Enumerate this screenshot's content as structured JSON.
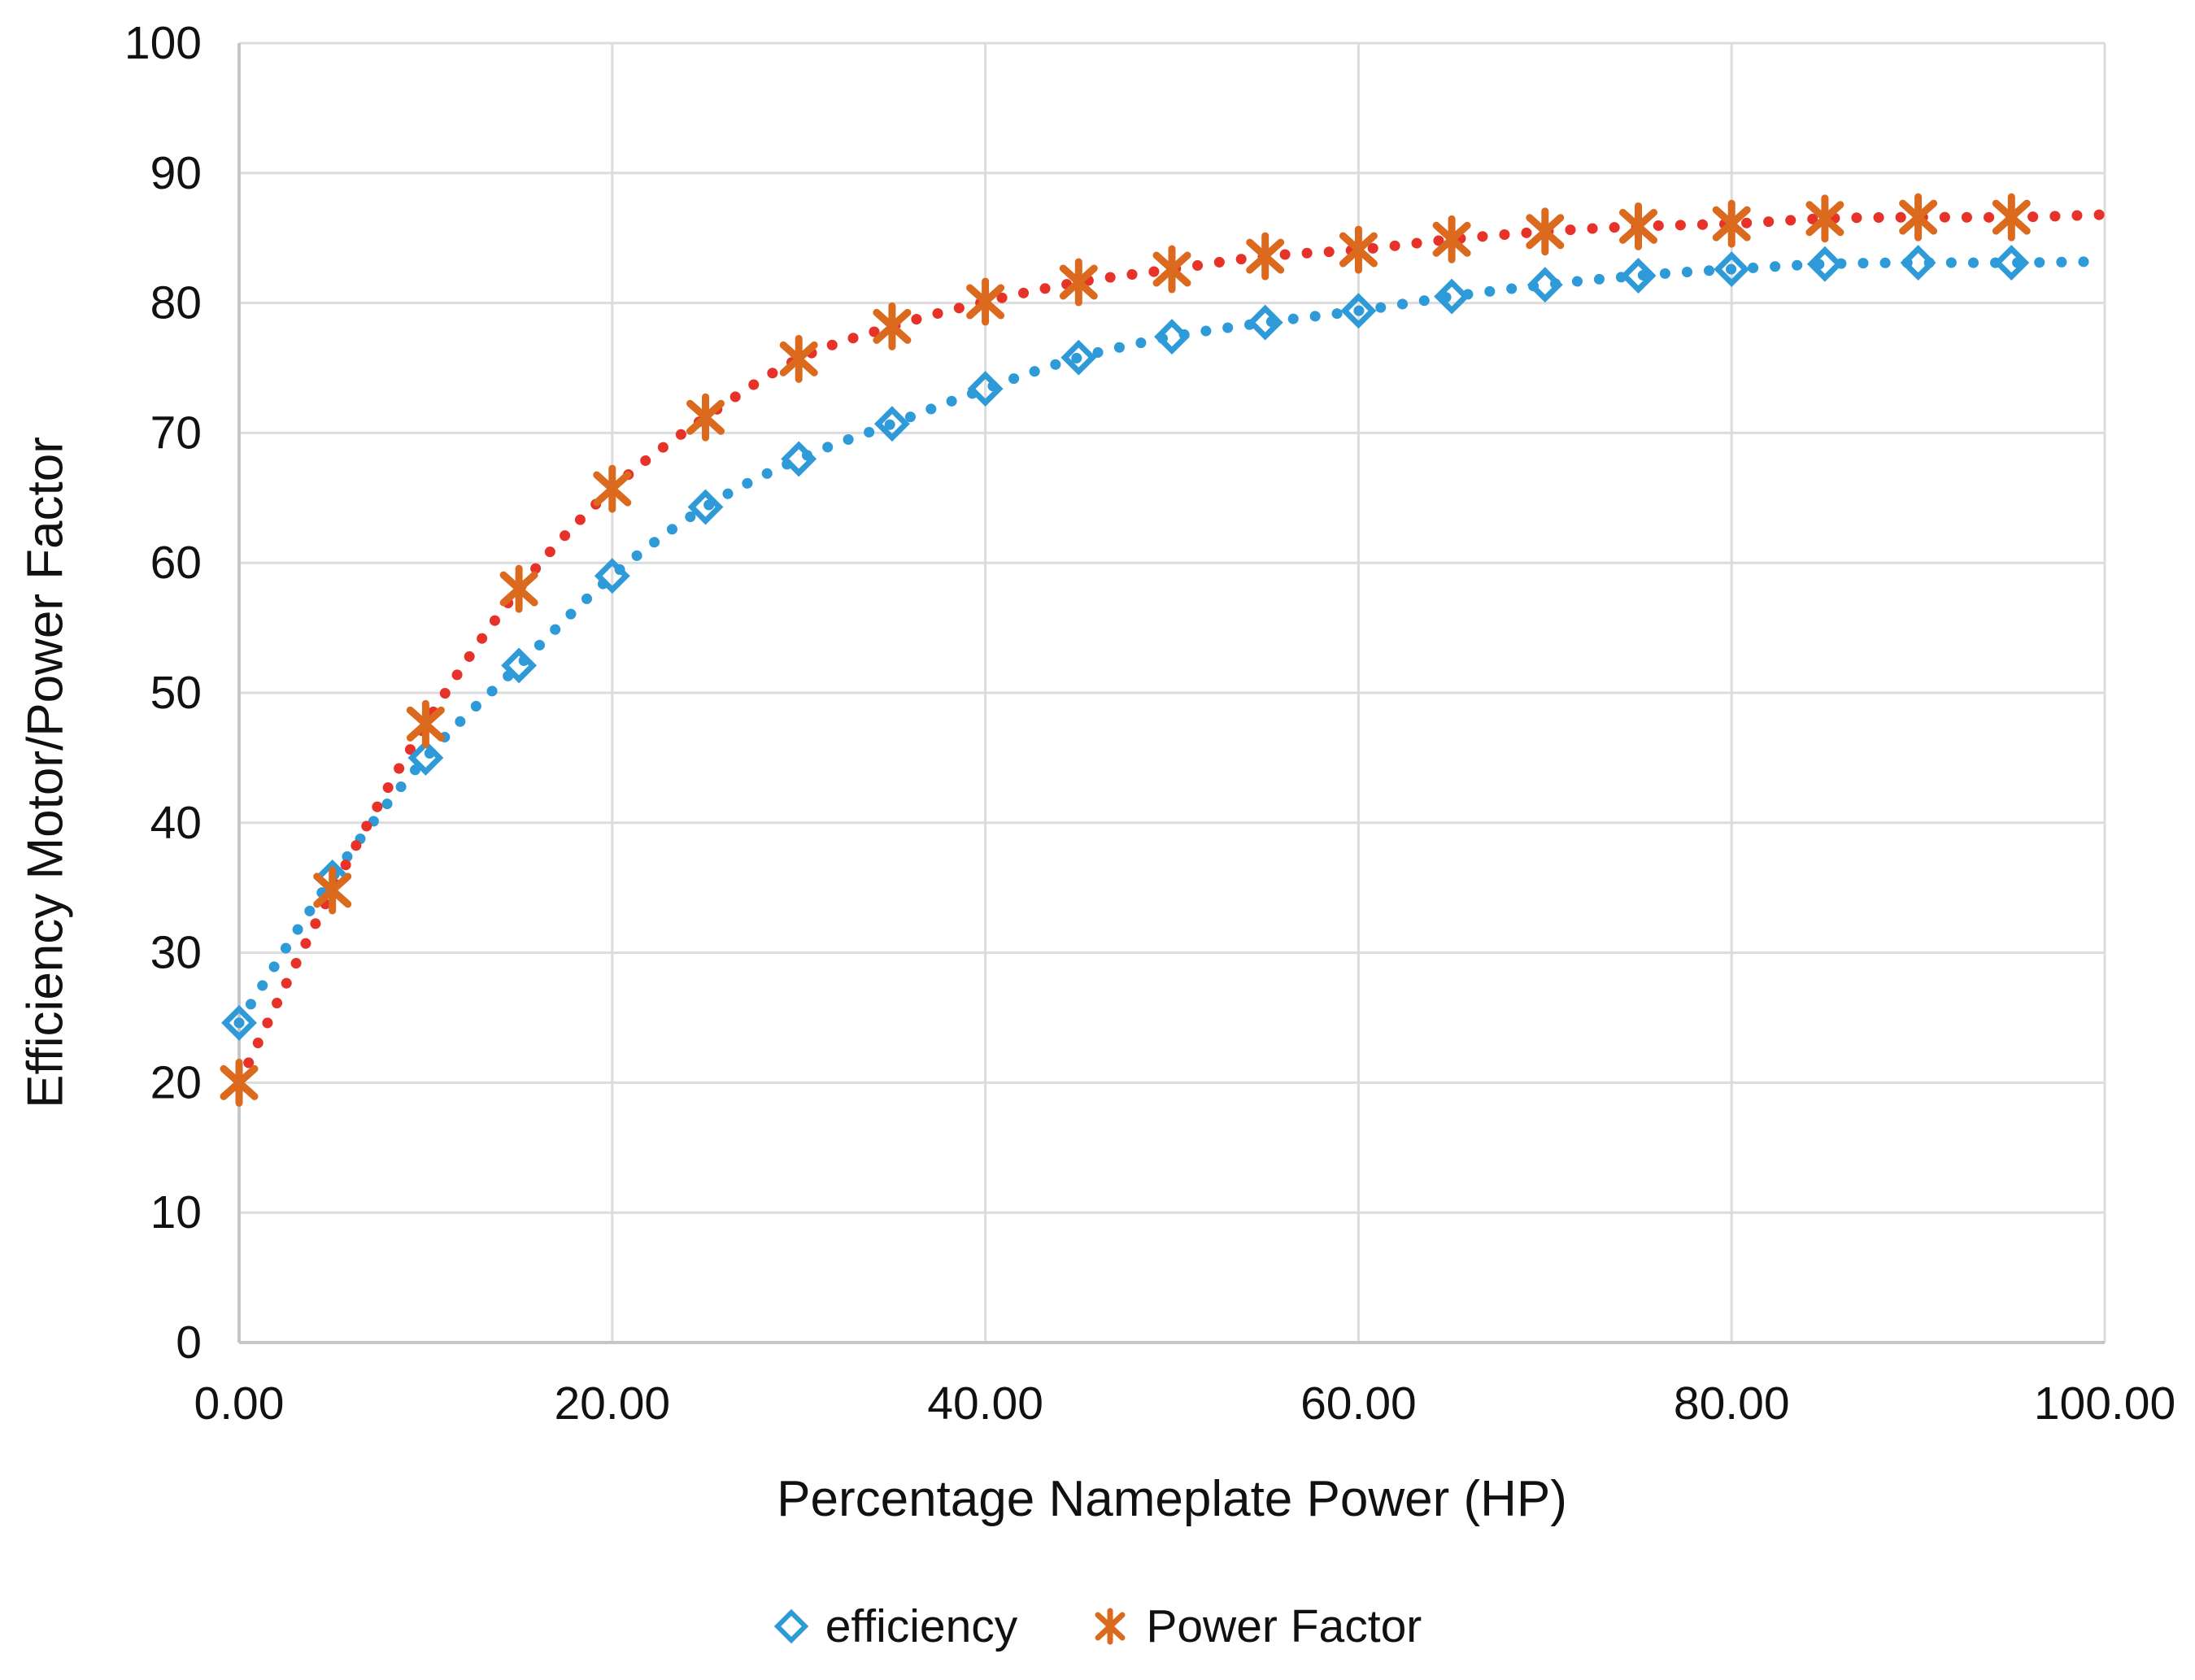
{
  "chart_data": {
    "type": "scatter",
    "title": "",
    "xlabel": "Percentage Nameplate Power (HP)",
    "ylabel": "Efficiency Motor/Power Factor",
    "xlim": [
      0,
      100
    ],
    "ylim": [
      0,
      100
    ],
    "x_major_unit": 20,
    "y_major_unit": 10,
    "grid": true,
    "legend_position": "bottom",
    "xtick_labels": [
      "0.00",
      "20.00",
      "40.00",
      "60.00",
      "80.00",
      "100.00"
    ],
    "ytick_labels": [
      "0",
      "10",
      "20",
      "30",
      "40",
      "50",
      "60",
      "70",
      "80",
      "90",
      "100"
    ],
    "x": [
      0,
      5,
      10,
      15,
      20,
      25,
      30,
      35,
      40,
      45,
      50,
      55,
      60,
      65,
      70,
      75,
      80,
      85,
      90,
      95
    ],
    "series": [
      {
        "name": "efficiency",
        "marker": "open-diamond",
        "marker_color": "#2E9BD8",
        "line_color": "#2E9BD8",
        "line_style": "dotted",
        "values": [
          24.6,
          35.8,
          45.0,
          52.1,
          59.0,
          64.3,
          68.0,
          70.7,
          73.4,
          75.8,
          77.4,
          78.5,
          79.4,
          80.5,
          81.4,
          82.1,
          82.6,
          83.0,
          83.1,
          83.1
        ],
        "trend_end_x": 100,
        "trend_end_value": 83.2
      },
      {
        "name": "Power Factor",
        "marker": "asterisk",
        "marker_color": "#DB6A1E",
        "line_color": "#E63228",
        "line_style": "dotted",
        "values": [
          20.0,
          34.8,
          47.6,
          58.0,
          65.7,
          71.2,
          75.7,
          78.2,
          80.1,
          81.6,
          82.6,
          83.6,
          84.1,
          84.9,
          85.5,
          85.9,
          86.1,
          86.5,
          86.6,
          86.6
        ],
        "trend_end_x": 100,
        "trend_end_value": 86.8
      }
    ]
  },
  "legend": {
    "items": [
      {
        "label": "efficiency",
        "glyph": "open-diamond-icon",
        "color": "#2E9BD8"
      },
      {
        "label": "Power Factor",
        "glyph": "asterisk-icon",
        "color": "#DB6A1E"
      }
    ]
  },
  "colors": {
    "gridline": "#DCDCDC",
    "axis_line": "#C6C6C6",
    "text": "#111111",
    "background": "#FFFFFF"
  }
}
